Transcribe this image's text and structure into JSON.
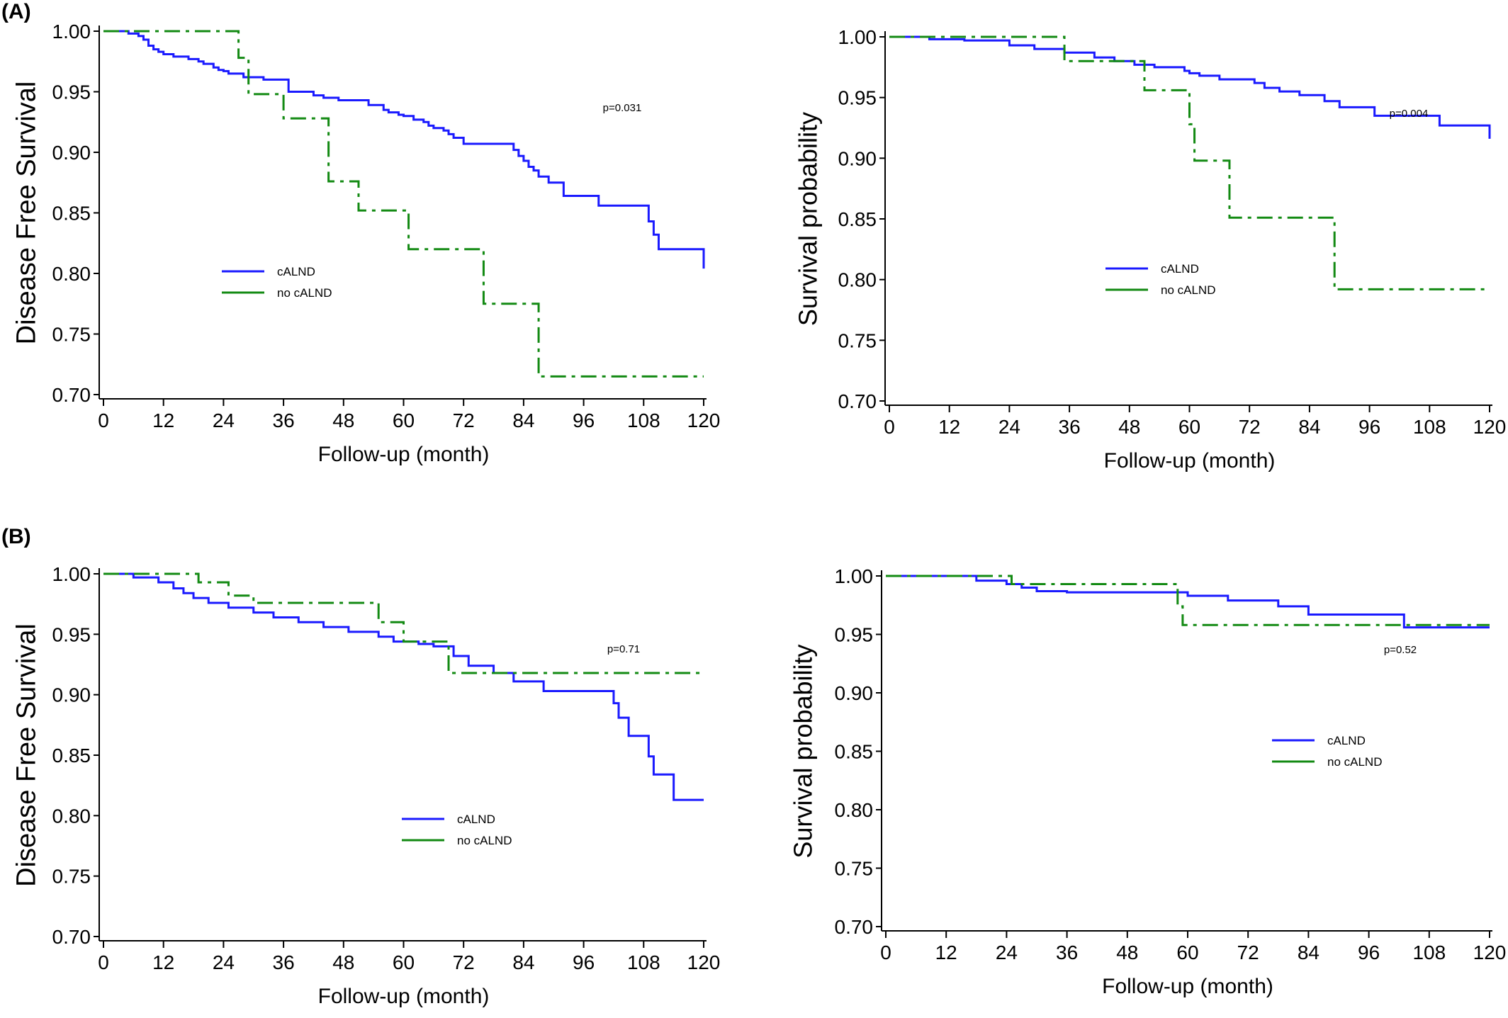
{
  "figure": {
    "panel_labels": [
      "(A)",
      "(B)"
    ]
  },
  "colors": {
    "cALND": "#1a1aff",
    "no_cALND": "#138a13",
    "axis": "#000000"
  },
  "chart_data": [
    {
      "type": "line",
      "subtype": "kaplan-meier",
      "title": "",
      "xlabel": "Follow-up (month)",
      "ylabel": "Disease Free Survival",
      "xlim": [
        0,
        120
      ],
      "ylim": [
        0.7,
        1.0
      ],
      "xticks": [
        0,
        12,
        24,
        36,
        48,
        60,
        72,
        84,
        96,
        108,
        120
      ],
      "yticks": [
        "0.70",
        "0.75",
        "0.80",
        "0.85",
        "0.90",
        "0.95",
        "1.00"
      ],
      "annotation": "p=0.031",
      "legend_position": "lower-left",
      "series": [
        {
          "name": "cALND",
          "color": "#1a1aff",
          "dash": "solid",
          "x": [
            0,
            5,
            7,
            8,
            9,
            10,
            11,
            12,
            14,
            17,
            19,
            20,
            22,
            23,
            24,
            25,
            28,
            32,
            37,
            42,
            44,
            47,
            53,
            56,
            57,
            59,
            60,
            62,
            64,
            65,
            66,
            68,
            69,
            70,
            72,
            82,
            83,
            84,
            85,
            86,
            87,
            89,
            92,
            99,
            109,
            110,
            111,
            120,
            120
          ],
          "y": [
            1.0,
            0.998,
            0.996,
            0.993,
            0.988,
            0.985,
            0.983,
            0.981,
            0.979,
            0.977,
            0.975,
            0.973,
            0.97,
            0.968,
            0.967,
            0.965,
            0.962,
            0.96,
            0.95,
            0.947,
            0.945,
            0.943,
            0.939,
            0.935,
            0.933,
            0.931,
            0.93,
            0.927,
            0.925,
            0.922,
            0.92,
            0.918,
            0.915,
            0.912,
            0.907,
            0.902,
            0.897,
            0.893,
            0.888,
            0.885,
            0.88,
            0.875,
            0.864,
            0.856,
            0.843,
            0.832,
            0.82,
            0.82,
            0.804
          ]
        },
        {
          "name": "no cALND",
          "color": "#138a13",
          "dash": "dash-dot",
          "x": [
            0,
            27,
            29,
            36,
            45,
            51,
            61,
            76,
            87,
            120
          ],
          "y": [
            1.0,
            0.978,
            0.948,
            0.928,
            0.876,
            0.852,
            0.82,
            0.775,
            0.715,
            0.715
          ]
        }
      ]
    },
    {
      "type": "line",
      "subtype": "kaplan-meier",
      "title": "",
      "xlabel": "Follow-up (month)",
      "ylabel": "Survival probability",
      "xlim": [
        0,
        120
      ],
      "ylim": [
        0.7,
        1.0
      ],
      "xticks": [
        0,
        12,
        24,
        36,
        48,
        60,
        72,
        84,
        96,
        108,
        120
      ],
      "yticks": [
        "0.70",
        "0.75",
        "0.80",
        "0.85",
        "0.90",
        "0.95",
        "1.00"
      ],
      "annotation": "p=0.004",
      "legend_position": "lower-center",
      "series": [
        {
          "name": "cALND",
          "color": "#1a1aff",
          "dash": "solid",
          "x": [
            0,
            8,
            15,
            24,
            29,
            35,
            41,
            45,
            49,
            53,
            59,
            60,
            62,
            66,
            73,
            75,
            78,
            82,
            87,
            90,
            97,
            110,
            120
          ],
          "y": [
            1.0,
            0.998,
            0.997,
            0.993,
            0.99,
            0.987,
            0.983,
            0.98,
            0.977,
            0.975,
            0.972,
            0.97,
            0.968,
            0.965,
            0.962,
            0.958,
            0.955,
            0.952,
            0.947,
            0.942,
            0.935,
            0.927,
            0.916
          ]
        },
        {
          "name": "no cALND",
          "color": "#138a13",
          "dash": "dash-dot",
          "x": [
            0,
            35,
            46,
            51,
            60,
            61,
            68,
            89,
            120
          ],
          "y": [
            1.0,
            0.98,
            0.98,
            0.956,
            0.928,
            0.898,
            0.851,
            0.792,
            0.792
          ]
        }
      ]
    },
    {
      "type": "line",
      "subtype": "kaplan-meier",
      "title": "",
      "xlabel": "Follow-up (month)",
      "ylabel": "Disease Free Survival",
      "xlim": [
        0,
        120
      ],
      "ylim": [
        0.7,
        1.0
      ],
      "xticks": [
        0,
        12,
        24,
        36,
        48,
        60,
        72,
        84,
        96,
        108,
        120
      ],
      "yticks": [
        "0.70",
        "0.75",
        "0.80",
        "0.85",
        "0.90",
        "0.95",
        "1.00"
      ],
      "annotation": "p=0.71",
      "legend_position": "lower-center",
      "series": [
        {
          "name": "cALND",
          "color": "#1a1aff",
          "dash": "solid",
          "x": [
            0,
            6,
            11,
            14,
            16,
            18,
            21,
            25,
            30,
            34,
            39,
            44,
            49,
            55,
            58,
            63,
            66,
            70,
            73,
            78,
            82,
            88,
            102,
            103,
            105,
            109,
            110,
            114,
            120
          ],
          "y": [
            1.0,
            0.997,
            0.993,
            0.988,
            0.984,
            0.98,
            0.976,
            0.972,
            0.968,
            0.964,
            0.96,
            0.956,
            0.952,
            0.948,
            0.944,
            0.942,
            0.94,
            0.932,
            0.924,
            0.918,
            0.911,
            0.903,
            0.893,
            0.881,
            0.866,
            0.849,
            0.834,
            0.813,
            0.813
          ]
        },
        {
          "name": "no cALND",
          "color": "#138a13",
          "dash": "dash-dot",
          "x": [
            0,
            19,
            25,
            30,
            55,
            60,
            69,
            120
          ],
          "y": [
            1.0,
            0.993,
            0.982,
            0.976,
            0.96,
            0.944,
            0.918,
            0.918
          ]
        }
      ]
    },
    {
      "type": "line",
      "subtype": "kaplan-meier",
      "title": "",
      "xlabel": "Follow-up (month)",
      "ylabel": "Survival probability",
      "xlim": [
        0,
        120
      ],
      "ylim": [
        0.7,
        1.0
      ],
      "xticks": [
        0,
        12,
        24,
        36,
        48,
        60,
        72,
        84,
        96,
        108,
        120
      ],
      "yticks": [
        "0.70",
        "0.75",
        "0.80",
        "0.85",
        "0.90",
        "0.95",
        "1.00"
      ],
      "annotation": "p=0.52",
      "legend_position": "lower-right",
      "series": [
        {
          "name": "cALND",
          "color": "#1a1aff",
          "dash": "solid",
          "x": [
            0,
            18,
            24,
            27,
            30,
            36,
            60,
            68,
            78,
            84,
            103,
            120
          ],
          "y": [
            1.0,
            0.996,
            0.993,
            0.99,
            0.987,
            0.986,
            0.983,
            0.979,
            0.974,
            0.967,
            0.956,
            0.956
          ]
        },
        {
          "name": "no cALND",
          "color": "#138a13",
          "dash": "dash-dot",
          "x": [
            0,
            25,
            58,
            59,
            120
          ],
          "y": [
            1.0,
            0.993,
            0.974,
            0.958,
            0.958
          ]
        }
      ]
    }
  ]
}
